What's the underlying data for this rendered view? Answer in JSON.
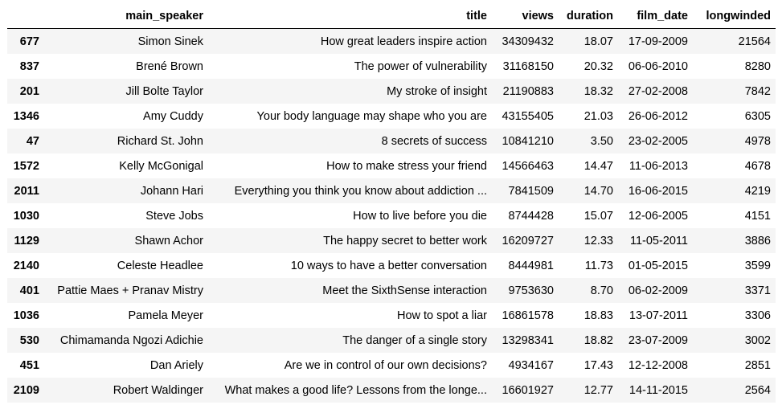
{
  "table": {
    "columns": [
      "",
      "main_speaker",
      "title",
      "views",
      "duration",
      "film_date",
      "longwinded"
    ],
    "rows": [
      {
        "index": "677",
        "main_speaker": "Simon Sinek",
        "title": "How great leaders inspire action",
        "views": "34309432",
        "duration": "18.07",
        "film_date": "17-09-2009",
        "longwinded": "21564"
      },
      {
        "index": "837",
        "main_speaker": "Brené Brown",
        "title": "The power of vulnerability",
        "views": "31168150",
        "duration": "20.32",
        "film_date": "06-06-2010",
        "longwinded": "8280"
      },
      {
        "index": "201",
        "main_speaker": "Jill Bolte Taylor",
        "title": "My stroke of insight",
        "views": "21190883",
        "duration": "18.32",
        "film_date": "27-02-2008",
        "longwinded": "7842"
      },
      {
        "index": "1346",
        "main_speaker": "Amy Cuddy",
        "title": "Your body language may shape who you are",
        "views": "43155405",
        "duration": "21.03",
        "film_date": "26-06-2012",
        "longwinded": "6305"
      },
      {
        "index": "47",
        "main_speaker": "Richard St. John",
        "title": "8 secrets of success",
        "views": "10841210",
        "duration": "3.50",
        "film_date": "23-02-2005",
        "longwinded": "4978"
      },
      {
        "index": "1572",
        "main_speaker": "Kelly McGonigal",
        "title": "How to make stress your friend",
        "views": "14566463",
        "duration": "14.47",
        "film_date": "11-06-2013",
        "longwinded": "4678"
      },
      {
        "index": "2011",
        "main_speaker": "Johann Hari",
        "title": "Everything you think you know about addiction ...",
        "views": "7841509",
        "duration": "14.70",
        "film_date": "16-06-2015",
        "longwinded": "4219"
      },
      {
        "index": "1030",
        "main_speaker": "Steve Jobs",
        "title": "How to live before you die",
        "views": "8744428",
        "duration": "15.07",
        "film_date": "12-06-2005",
        "longwinded": "4151"
      },
      {
        "index": "1129",
        "main_speaker": "Shawn Achor",
        "title": "The happy secret to better work",
        "views": "16209727",
        "duration": "12.33",
        "film_date": "11-05-2011",
        "longwinded": "3886"
      },
      {
        "index": "2140",
        "main_speaker": "Celeste Headlee",
        "title": "10 ways to have a better conversation",
        "views": "8444981",
        "duration": "11.73",
        "film_date": "01-05-2015",
        "longwinded": "3599"
      },
      {
        "index": "401",
        "main_speaker": "Pattie Maes + Pranav Mistry",
        "title": "Meet the SixthSense interaction",
        "views": "9753630",
        "duration": "8.70",
        "film_date": "06-02-2009",
        "longwinded": "3371"
      },
      {
        "index": "1036",
        "main_speaker": "Pamela Meyer",
        "title": "How to spot a liar",
        "views": "16861578",
        "duration": "18.83",
        "film_date": "13-07-2011",
        "longwinded": "3306"
      },
      {
        "index": "530",
        "main_speaker": "Chimamanda Ngozi Adichie",
        "title": "The danger of a single story",
        "views": "13298341",
        "duration": "18.82",
        "film_date": "23-07-2009",
        "longwinded": "3002"
      },
      {
        "index": "451",
        "main_speaker": "Dan Ariely",
        "title": "Are we in control of our own decisions?",
        "views": "4934167",
        "duration": "17.43",
        "film_date": "12-12-2008",
        "longwinded": "2851"
      },
      {
        "index": "2109",
        "main_speaker": "Robert Waldinger",
        "title": "What makes a good life? Lessons from the longe...",
        "views": "16601927",
        "duration": "12.77",
        "film_date": "14-11-2015",
        "longwinded": "2564"
      }
    ]
  },
  "colors": {
    "stripe_row": "#f5f5f5",
    "plain_row": "#ffffff",
    "header_rule": "#000000"
  }
}
